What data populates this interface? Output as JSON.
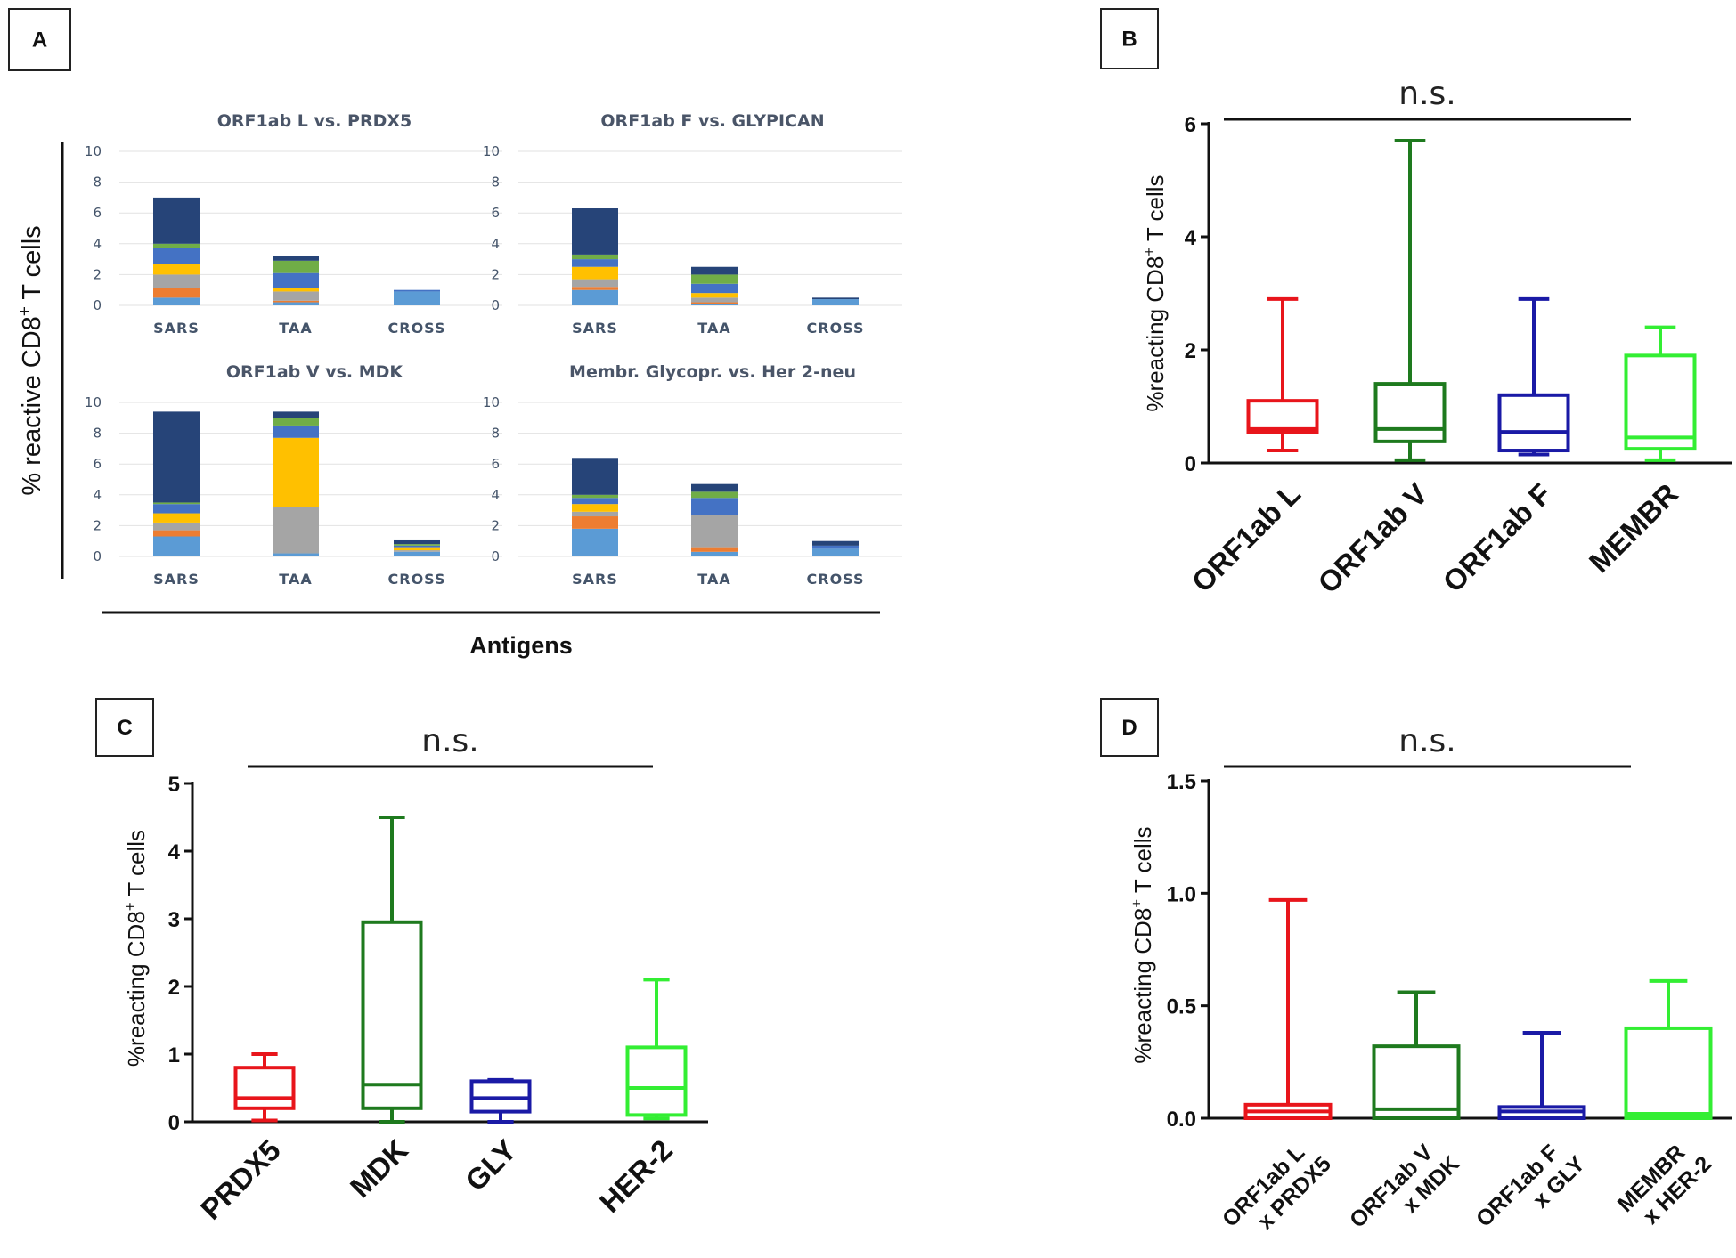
{
  "panel_labels": {
    "A": "A",
    "B": "B",
    "C": "C",
    "D": "D"
  },
  "colors": {
    "light_blue": "#5b9bd5",
    "orange": "#ed7d31",
    "gray": "#a5a5a5",
    "yellow": "#ffc000",
    "blue": "#4472c4",
    "green": "#70ad47",
    "dark_blue": "#264478",
    "red": "#e8151b",
    "dark_green": "#1e7a1e",
    "navy": "#1a1aa6",
    "bright_green": "#33ee33"
  },
  "chart_data": [
    {
      "panel": "A",
      "type": "bar",
      "stacked": true,
      "ylabel": "% reactive CD8⁺ T cells",
      "xlabel": "Antigens",
      "ylim": [
        0,
        10
      ],
      "yticks": [
        "0",
        "2",
        "4",
        "6",
        "8",
        "10"
      ],
      "series_names": [
        "s1",
        "s2",
        "s3",
        "s4",
        "s5",
        "s6",
        "s7"
      ],
      "subplots": [
        {
          "title": "ORF1ab L vs. PRDX5",
          "categories": [
            "SARS",
            "TAA",
            "CROSS"
          ],
          "stacks": [
            [
              0.5,
              0.6,
              0.9,
              0.7,
              1.0,
              0.3,
              3.0
            ],
            [
              0.2,
              0.1,
              0.6,
              0.2,
              1.0,
              0.8,
              0.3
            ],
            [
              0.9,
              0,
              0,
              0,
              0.1,
              0,
              0
            ]
          ]
        },
        {
          "title": "ORF1ab F  vs. GLYPICAN",
          "categories": [
            "SARS",
            "TAA",
            "CROSS"
          ],
          "stacks": [
            [
              1.0,
              0.2,
              0.5,
              0.8,
              0.5,
              0.3,
              3.0
            ],
            [
              0.1,
              0.1,
              0.3,
              0.3,
              0.6,
              0.6,
              0.5
            ],
            [
              0.4,
              0,
              0,
              0,
              0,
              0,
              0.1
            ]
          ]
        },
        {
          "title": "ORF1ab V vs. MDK",
          "categories": [
            "SARS",
            "TAA",
            "CROSS"
          ],
          "stacks": [
            [
              1.3,
              0.4,
              0.5,
              0.6,
              0.6,
              0.1,
              5.9
            ],
            [
              0.2,
              0,
              3.0,
              4.5,
              0.8,
              0.5,
              0.4
            ],
            [
              0.3,
              0,
              0.1,
              0.2,
              0.1,
              0.1,
              0.3
            ]
          ]
        },
        {
          "title": "Membr. Glycopr. vs. Her 2-neu",
          "categories": [
            "SARS",
            "TAA",
            "CROSS"
          ],
          "stacks": [
            [
              1.8,
              0.8,
              0.3,
              0.5,
              0.4,
              0.2,
              2.4
            ],
            [
              0.3,
              0.3,
              2.1,
              0,
              1.1,
              0.4,
              0.5
            ],
            [
              0.5,
              0,
              0,
              0,
              0.2,
              0,
              0.3
            ]
          ]
        }
      ]
    },
    {
      "panel": "B",
      "type": "box",
      "ylabel": "%reacting CD8⁺ T cells",
      "ylim": [
        0,
        6
      ],
      "yticks": [
        "0",
        "2",
        "4",
        "6"
      ],
      "annotation": "n.s.",
      "categories": [
        "ORF1ab L",
        "ORF1ab V",
        "ORF1ab F",
        "MEMBR"
      ],
      "boxes": [
        {
          "min": 0.22,
          "q1": 0.55,
          "median": 0.6,
          "q3": 1.1,
          "max": 2.9
        },
        {
          "min": 0.05,
          "q1": 0.38,
          "median": 0.6,
          "q3": 1.4,
          "max": 5.7
        },
        {
          "min": 0.15,
          "q1": 0.22,
          "median": 0.55,
          "q3": 1.2,
          "max": 2.9
        },
        {
          "min": 0.05,
          "q1": 0.25,
          "median": 0.45,
          "q3": 1.9,
          "max": 2.4
        }
      ]
    },
    {
      "panel": "C",
      "type": "box",
      "ylabel": "%reacting CD8⁺ T cells",
      "ylim": [
        0,
        5
      ],
      "yticks": [
        "0",
        "1",
        "2",
        "3",
        "4",
        "5"
      ],
      "annotation": "n.s.",
      "categories": [
        "PRDX5",
        "MDK",
        "GLY",
        "HER-2"
      ],
      "boxes": [
        {
          "min": 0.02,
          "q1": 0.2,
          "median": 0.35,
          "q3": 0.8,
          "max": 1.0
        },
        {
          "min": 0.0,
          "q1": 0.2,
          "median": 0.55,
          "q3": 2.95,
          "max": 4.5
        },
        {
          "min": 0.0,
          "q1": 0.15,
          "median": 0.35,
          "q3": 0.6,
          "max": 0.62
        },
        {
          "min": 0.05,
          "q1": 0.1,
          "median": 0.5,
          "q3": 1.1,
          "max": 2.1
        }
      ]
    },
    {
      "panel": "D",
      "type": "box",
      "ylabel": "%reacting CD8⁺ T cells",
      "ylim": [
        0,
        1.5
      ],
      "yticks": [
        "0.0",
        "0.5",
        "1.0",
        "1.5"
      ],
      "annotation": "n.s.",
      "categories": [
        [
          "ORF1ab L",
          "x PRDX5"
        ],
        [
          "ORF1ab V",
          "x MDK"
        ],
        [
          "ORF1ab F",
          "x GLY"
        ],
        [
          "MEMBR",
          "x HER-2"
        ]
      ],
      "boxes": [
        {
          "min": 0.0,
          "q1": 0.0,
          "median": 0.03,
          "q3": 0.06,
          "max": 0.97
        },
        {
          "min": 0.0,
          "q1": 0.0,
          "median": 0.04,
          "q3": 0.32,
          "max": 0.56
        },
        {
          "min": 0.0,
          "q1": 0.0,
          "median": 0.03,
          "q3": 0.05,
          "max": 0.38
        },
        {
          "min": 0.0,
          "q1": 0.0,
          "median": 0.02,
          "q3": 0.4,
          "max": 0.61
        }
      ]
    }
  ]
}
